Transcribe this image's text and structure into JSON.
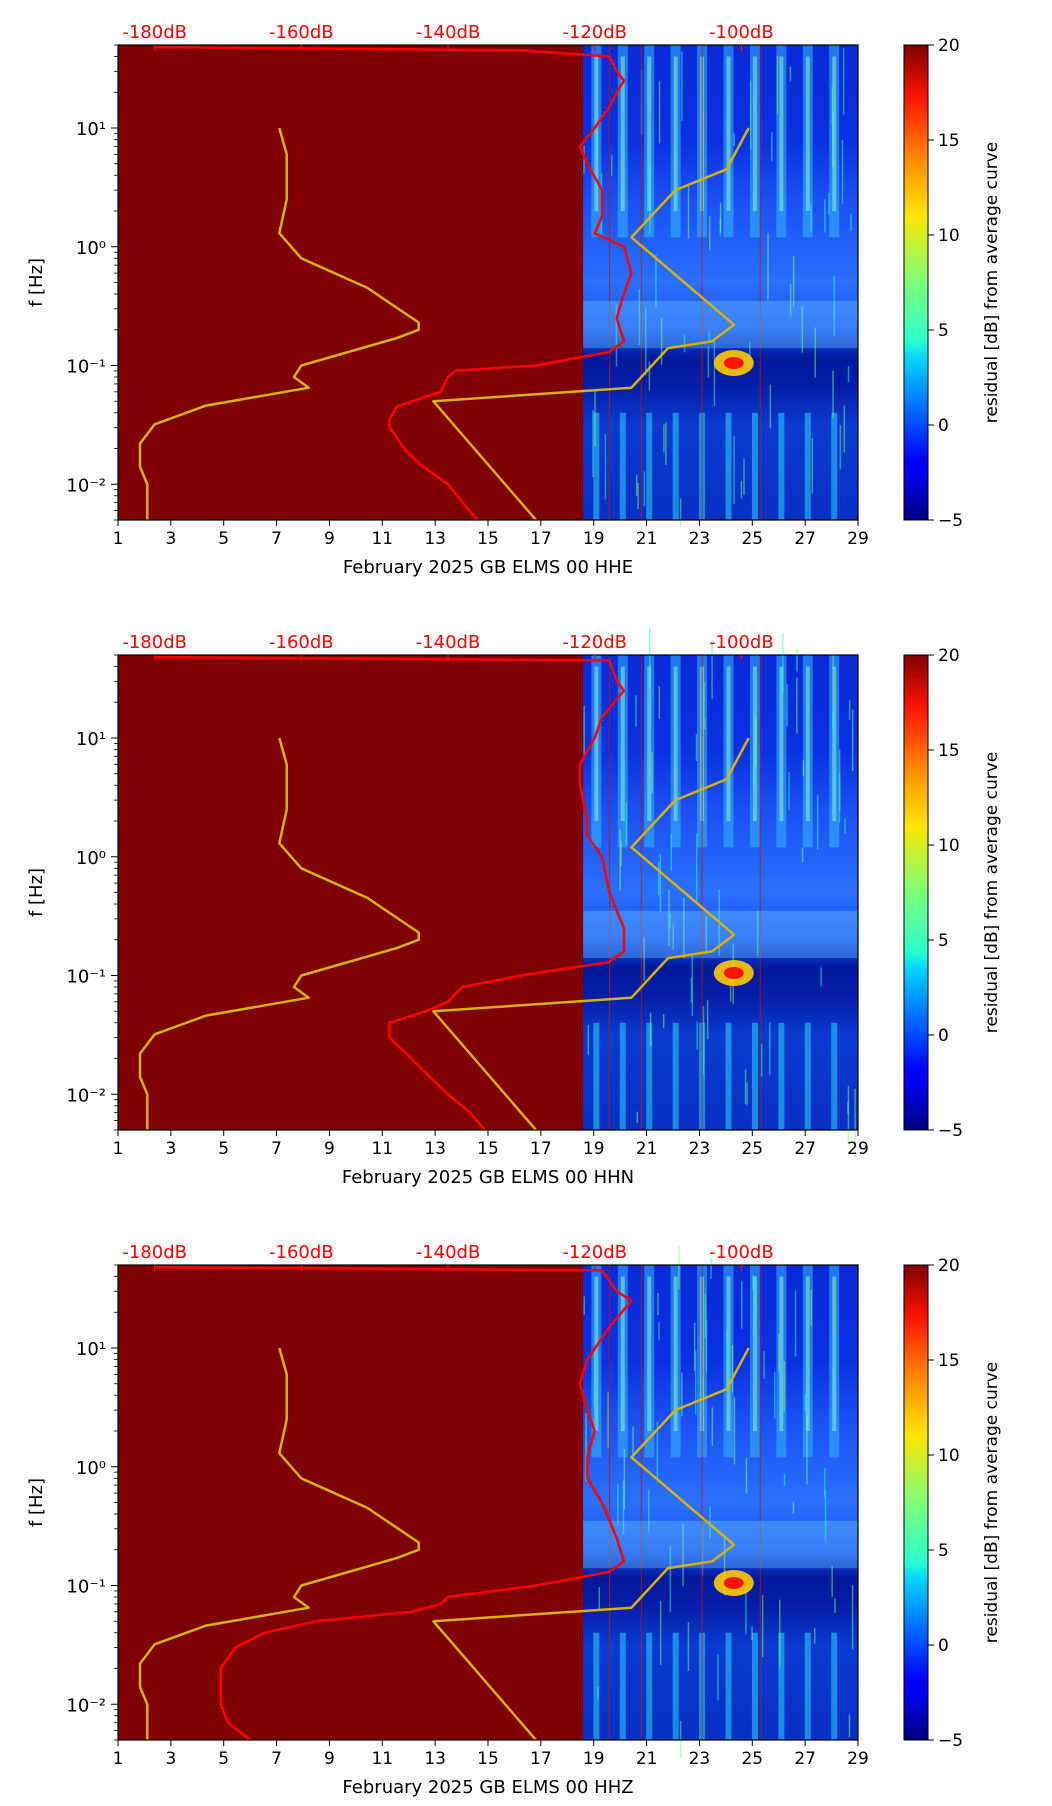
{
  "colors": {
    "saturated_background": "#7f0000",
    "median_curve": "#ff0000",
    "model_curve": "#d4b20a",
    "top_axis_text": "#ff0000"
  },
  "colorbar": {
    "label": "residual [dB] from average curve",
    "range": [
      -5,
      20
    ],
    "ticks": [
      "20",
      "15",
      "10",
      "5",
      "0",
      "−5"
    ],
    "tick_values": [
      20,
      15,
      10,
      5,
      0,
      -5
    ],
    "colormap": "jet"
  },
  "chart_data": [
    {
      "type": "heatmap",
      "xlabel": "February 2025 GB ELMS 00 HHE",
      "ylabel": "f [Hz]",
      "x_ticks": [
        "1",
        "3",
        "5",
        "7",
        "9",
        "11",
        "13",
        "15",
        "17",
        "19",
        "21",
        "23",
        "25",
        "27",
        "29"
      ],
      "y_ticks": [
        "10¹",
        "10⁰",
        "10⁻¹",
        "10⁻²"
      ],
      "y_scale": "log",
      "xlim": [
        1,
        29
      ],
      "ylim": [
        0.005,
        50
      ],
      "top_axis": {
        "ticks": [
          "-180dB",
          "-160dB",
          "-140dB",
          "-120dB",
          "-100dB"
        ],
        "values": [
          -180,
          -160,
          -140,
          -120,
          -100
        ]
      },
      "data_start_day": 18.6,
      "median_curve": [
        [
          0.005,
          -136
        ],
        [
          0.007,
          -138
        ],
        [
          0.01,
          -140
        ],
        [
          0.015,
          -144
        ],
        [
          0.02,
          -146
        ],
        [
          0.025,
          -147
        ],
        [
          0.03,
          -148
        ],
        [
          0.035,
          -148
        ],
        [
          0.045,
          -147
        ],
        [
          0.06,
          -141
        ],
        [
          0.08,
          -140
        ],
        [
          0.09,
          -139
        ],
        [
          0.1,
          -128
        ],
        [
          0.13,
          -118
        ],
        [
          0.16,
          -116
        ],
        [
          0.25,
          -117
        ],
        [
          0.4,
          -116
        ],
        [
          0.6,
          -115
        ],
        [
          1.0,
          -116
        ],
        [
          1.3,
          -120
        ],
        [
          1.8,
          -119
        ],
        [
          3,
          -119
        ],
        [
          5,
          -121
        ],
        [
          7,
          -122
        ],
        [
          10,
          -120
        ],
        [
          15,
          -118
        ],
        [
          20,
          -117
        ],
        [
          25,
          -116
        ],
        [
          30,
          -117
        ],
        [
          40,
          -118
        ],
        [
          45,
          -130
        ],
        [
          48,
          -180
        ]
      ],
      "model_curve": [
        [
          0.005,
          -181
        ],
        [
          0.008,
          -181
        ],
        [
          0.01,
          -181
        ],
        [
          0.014,
          -182
        ],
        [
          0.022,
          -182
        ],
        [
          0.032,
          -180
        ],
        [
          0.046,
          -173
        ],
        [
          0.065,
          -159
        ],
        [
          0.08,
          -161
        ],
        [
          0.1,
          -160
        ],
        [
          0.17,
          -147
        ],
        [
          0.2,
          -144
        ],
        [
          0.23,
          -144
        ],
        [
          0.45,
          -151
        ],
        [
          0.8,
          -160
        ],
        [
          1.3,
          -163
        ],
        [
          2.5,
          -162
        ],
        [
          4,
          -162
        ],
        [
          6,
          -162
        ],
        [
          10,
          -163
        ]
      ],
      "model_curve_2": [
        [
          0.005,
          -128
        ],
        [
          0.05,
          -142
        ],
        [
          0.065,
          -115
        ],
        [
          0.14,
          -110
        ],
        [
          0.16,
          -104
        ],
        [
          0.22,
          -101
        ],
        [
          1.2,
          -115
        ],
        [
          3,
          -109
        ],
        [
          4.5,
          -102
        ],
        [
          10,
          -99
        ]
      ]
    },
    {
      "type": "heatmap",
      "xlabel": "February 2025 GB ELMS 00 HHN",
      "ylabel": "f [Hz]",
      "x_ticks": [
        "1",
        "3",
        "5",
        "7",
        "9",
        "11",
        "13",
        "15",
        "17",
        "19",
        "21",
        "23",
        "25",
        "27",
        "29"
      ],
      "y_ticks": [
        "10¹",
        "10⁰",
        "10⁻¹",
        "10⁻²"
      ],
      "y_scale": "log",
      "xlim": [
        1,
        29
      ],
      "ylim": [
        0.005,
        50
      ],
      "top_axis": {
        "ticks": [
          "-180dB",
          "-160dB",
          "-140dB",
          "-120dB",
          "-100dB"
        ],
        "values": [
          -180,
          -160,
          -140,
          -120,
          -100
        ]
      },
      "data_start_day": 18.6,
      "median_curve": [
        [
          0.005,
          -135
        ],
        [
          0.007,
          -137
        ],
        [
          0.01,
          -140
        ],
        [
          0.015,
          -143
        ],
        [
          0.02,
          -145
        ],
        [
          0.03,
          -148
        ],
        [
          0.04,
          -148
        ],
        [
          0.05,
          -143
        ],
        [
          0.06,
          -140
        ],
        [
          0.07,
          -139
        ],
        [
          0.08,
          -138
        ],
        [
          0.1,
          -130
        ],
        [
          0.13,
          -118
        ],
        [
          0.16,
          -116
        ],
        [
          0.25,
          -116
        ],
        [
          0.5,
          -118
        ],
        [
          1.0,
          -119
        ],
        [
          1.5,
          -121
        ],
        [
          2,
          -121
        ],
        [
          4,
          -122
        ],
        [
          6,
          -122
        ],
        [
          10,
          -120
        ],
        [
          15,
          -119
        ],
        [
          25,
          -116
        ],
        [
          30,
          -117
        ],
        [
          45,
          -118
        ],
        [
          48,
          -180
        ]
      ],
      "model_curve": [
        [
          0.005,
          -181
        ],
        [
          0.008,
          -181
        ],
        [
          0.01,
          -181
        ],
        [
          0.014,
          -182
        ],
        [
          0.022,
          -182
        ],
        [
          0.032,
          -180
        ],
        [
          0.046,
          -173
        ],
        [
          0.065,
          -159
        ],
        [
          0.08,
          -161
        ],
        [
          0.1,
          -160
        ],
        [
          0.17,
          -147
        ],
        [
          0.2,
          -144
        ],
        [
          0.23,
          -144
        ],
        [
          0.45,
          -151
        ],
        [
          0.8,
          -160
        ],
        [
          1.3,
          -163
        ],
        [
          2.5,
          -162
        ],
        [
          4,
          -162
        ],
        [
          6,
          -162
        ],
        [
          10,
          -163
        ]
      ],
      "model_curve_2": [
        [
          0.005,
          -128
        ],
        [
          0.05,
          -142
        ],
        [
          0.065,
          -115
        ],
        [
          0.14,
          -110
        ],
        [
          0.16,
          -104
        ],
        [
          0.22,
          -101
        ],
        [
          1.2,
          -115
        ],
        [
          3,
          -109
        ],
        [
          4.5,
          -102
        ],
        [
          10,
          -99
        ]
      ]
    },
    {
      "type": "heatmap",
      "xlabel": "February 2025 GB ELMS 00 HHZ",
      "ylabel": "f [Hz]",
      "x_ticks": [
        "1",
        "3",
        "5",
        "7",
        "9",
        "11",
        "13",
        "15",
        "17",
        "19",
        "21",
        "23",
        "25",
        "27",
        "29"
      ],
      "y_ticks": [
        "10¹",
        "10⁰",
        "10⁻¹",
        "10⁻²"
      ],
      "y_scale": "log",
      "xlim": [
        1,
        29
      ],
      "ylim": [
        0.005,
        50
      ],
      "top_axis": {
        "ticks": [
          "-180dB",
          "-160dB",
          "-140dB",
          "-120dB",
          "-100dB"
        ],
        "values": [
          -180,
          -160,
          -140,
          -120,
          -100
        ]
      },
      "data_start_day": 18.6,
      "median_curve": [
        [
          0.005,
          -167
        ],
        [
          0.007,
          -170
        ],
        [
          0.01,
          -171
        ],
        [
          0.015,
          -171
        ],
        [
          0.02,
          -171
        ],
        [
          0.03,
          -169
        ],
        [
          0.04,
          -165
        ],
        [
          0.05,
          -158
        ],
        [
          0.06,
          -145
        ],
        [
          0.07,
          -141
        ],
        [
          0.08,
          -140
        ],
        [
          0.1,
          -128
        ],
        [
          0.13,
          -118
        ],
        [
          0.16,
          -116
        ],
        [
          0.25,
          -117
        ],
        [
          0.5,
          -119
        ],
        [
          0.8,
          -121
        ],
        [
          1.2,
          -121
        ],
        [
          2,
          -120
        ],
        [
          3,
          -121
        ],
        [
          5,
          -122
        ],
        [
          8,
          -121
        ],
        [
          15,
          -118
        ],
        [
          25,
          -115
        ],
        [
          30,
          -117
        ],
        [
          45,
          -119
        ],
        [
          48,
          -180
        ]
      ],
      "model_curve": [
        [
          0.005,
          -181
        ],
        [
          0.008,
          -181
        ],
        [
          0.01,
          -181
        ],
        [
          0.014,
          -182
        ],
        [
          0.022,
          -182
        ],
        [
          0.032,
          -180
        ],
        [
          0.046,
          -173
        ],
        [
          0.065,
          -159
        ],
        [
          0.08,
          -161
        ],
        [
          0.1,
          -160
        ],
        [
          0.17,
          -147
        ],
        [
          0.2,
          -144
        ],
        [
          0.23,
          -144
        ],
        [
          0.45,
          -151
        ],
        [
          0.8,
          -160
        ],
        [
          1.3,
          -163
        ],
        [
          2.5,
          -162
        ],
        [
          4,
          -162
        ],
        [
          6,
          -162
        ],
        [
          10,
          -163
        ]
      ],
      "model_curve_2": [
        [
          0.005,
          -128
        ],
        [
          0.05,
          -142
        ],
        [
          0.065,
          -115
        ],
        [
          0.14,
          -110
        ],
        [
          0.16,
          -104
        ],
        [
          0.22,
          -101
        ],
        [
          1.2,
          -115
        ],
        [
          3,
          -109
        ],
        [
          4.5,
          -102
        ],
        [
          10,
          -99
        ]
      ]
    }
  ]
}
